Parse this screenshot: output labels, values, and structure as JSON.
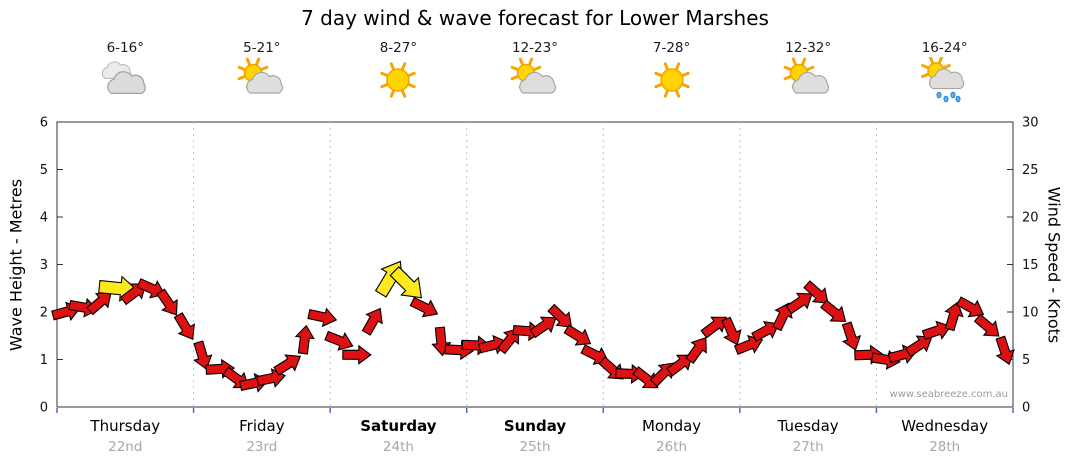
{
  "title": "7 day wind & wave forecast for Lower Marshes",
  "watermark": "www.seabreeze.com.au",
  "days": [
    {
      "name": "Thursday",
      "date": "22nd",
      "temp": "6-16°",
      "icon": "cloudy",
      "bold": false
    },
    {
      "name": "Friday",
      "date": "23rd",
      "temp": "5-21°",
      "icon": "sun-cloud",
      "bold": false
    },
    {
      "name": "Saturday",
      "date": "24th",
      "temp": "8-27°",
      "icon": "sunny",
      "bold": true
    },
    {
      "name": "Sunday",
      "date": "25th",
      "temp": "12-23°",
      "icon": "sun-cloud",
      "bold": true
    },
    {
      "name": "Monday",
      "date": "26th",
      "temp": "7-28°",
      "icon": "sunny",
      "bold": false
    },
    {
      "name": "Tuesday",
      "date": "27th",
      "temp": "12-32°",
      "icon": "sun-cloud",
      "bold": false
    },
    {
      "name": "Wednesday",
      "date": "28th",
      "temp": "16-24°",
      "icon": "sun-cloud-rain",
      "bold": false
    }
  ],
  "left_axis": {
    "label": "Wave Height - Metres",
    "min": 0,
    "max": 6,
    "step": 1
  },
  "right_axis": {
    "label": "Wind Speed - Knots",
    "min": 0,
    "max": 30,
    "step": 5
  },
  "chart_data": {
    "type": "line",
    "title": "7 day wind & wave forecast for Lower Marshes",
    "ylabel_left": "Wave Height - Metres",
    "ylabel_right": "Wind Speed - Knots",
    "unit": "knots",
    "categories": [
      "Thursday 22nd",
      "Friday 23rd",
      "Saturday 24th",
      "Sunday 25th",
      "Monday 26th",
      "Tuesday 27th",
      "Wednesday 28th"
    ],
    "samples_per_day": 8,
    "ylim_left": [
      0,
      6
    ],
    "ylim_right": [
      0,
      30
    ],
    "grid": "vertical-day-boundaries",
    "series": [
      {
        "name": "Wind speed (knots, arrow glyphs indicate direction)",
        "values": [
          10,
          10.5,
          11,
          12.5,
          12,
          12.5,
          11,
          8.5,
          5.5,
          4,
          3,
          2.5,
          3,
          4.5,
          7,
          9.5,
          7,
          5.5,
          9,
          13.5,
          13,
          10.5,
          7,
          6,
          6.5,
          6.5,
          7,
          8,
          8.5,
          9.5,
          7.5,
          5.5,
          4,
          3.5,
          3,
          3.5,
          4.5,
          6,
          8.5,
          8,
          6.5,
          8,
          9.5,
          11,
          12,
          10,
          7.5,
          5.5,
          5,
          5.5,
          6.5,
          8,
          9.5,
          10.5,
          8.5,
          6
        ]
      }
    ],
    "highlight_indices": [
      3,
      19,
      20
    ],
    "arrow_color": "#dd1111",
    "highlight_color": "#ffe81e"
  }
}
